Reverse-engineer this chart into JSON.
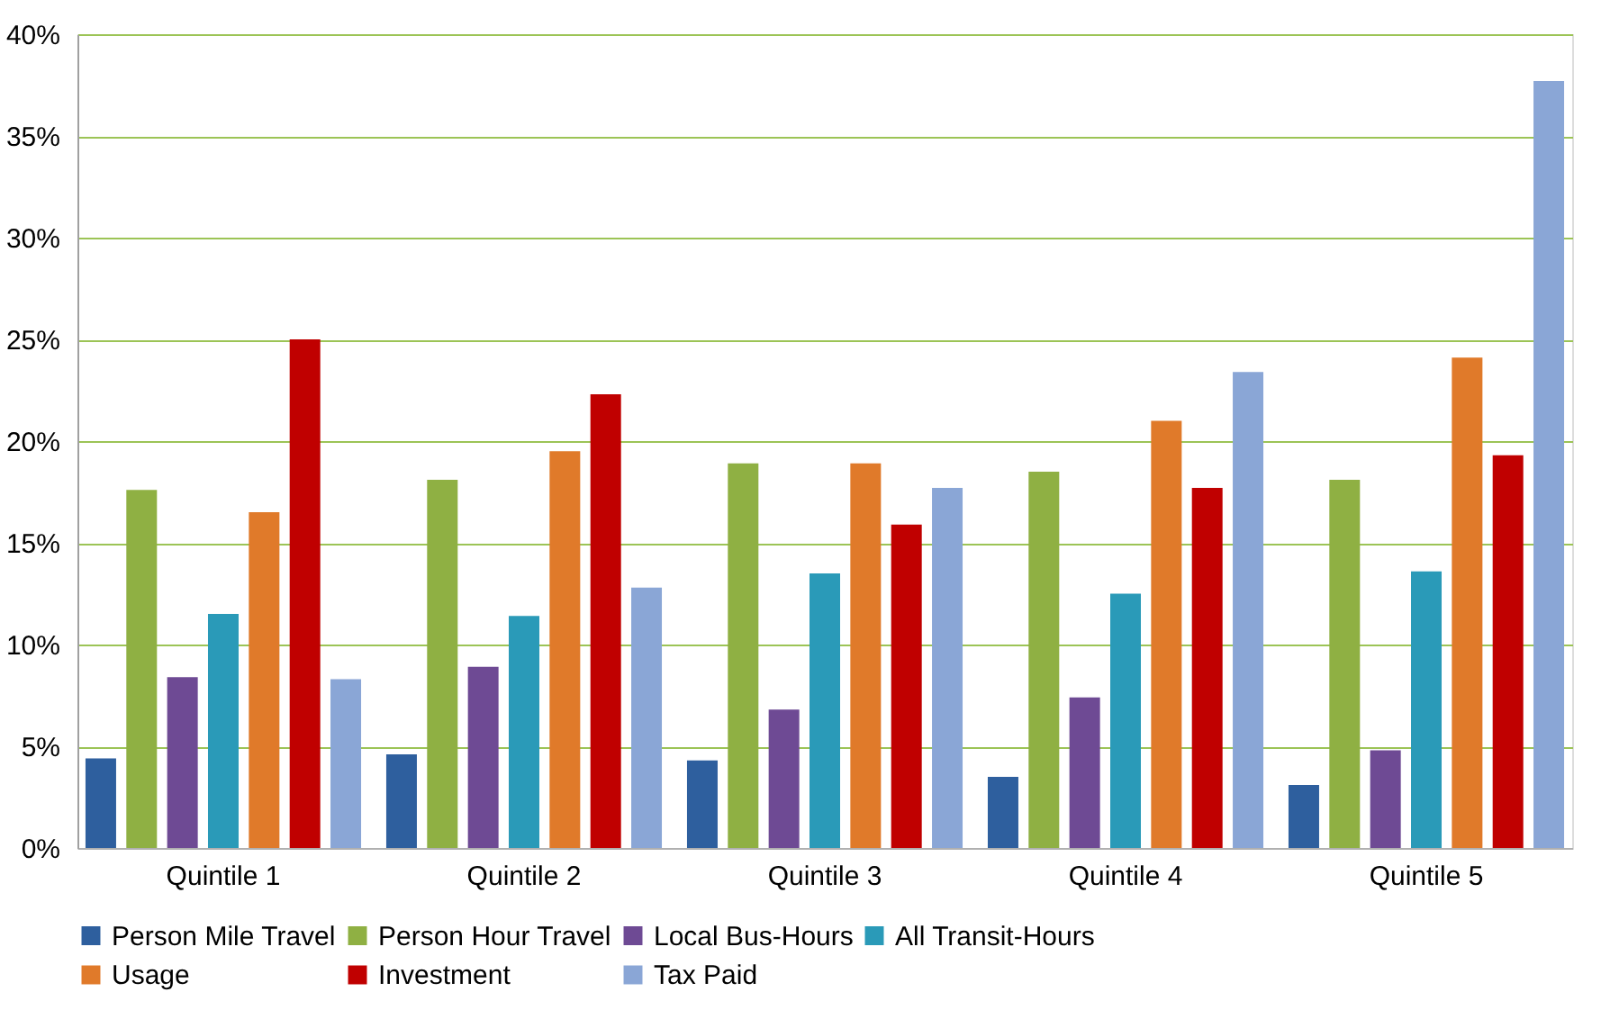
{
  "chart_data": {
    "type": "bar",
    "categories": [
      "Quintile 1",
      "Quintile 2",
      "Quintile 3",
      "Quintile 4",
      "Quintile 5"
    ],
    "series": [
      {
        "name": "Person Mile Travel",
        "color": "#2e5f9e",
        "values": [
          4.4,
          4.6,
          4.3,
          3.5,
          3.1
        ]
      },
      {
        "name": "Person Hour Travel",
        "color": "#8fb043",
        "values": [
          17.6,
          18.1,
          18.9,
          18.5,
          18.1
        ]
      },
      {
        "name": "Local Bus-Hours",
        "color": "#6e4a94",
        "values": [
          8.4,
          8.9,
          6.8,
          7.4,
          4.8
        ]
      },
      {
        "name": "All Transit-Hours",
        "color": "#2a9ab8",
        "values": [
          11.5,
          11.4,
          13.5,
          12.5,
          13.6
        ]
      },
      {
        "name": "Usage",
        "color": "#e07a2a",
        "values": [
          16.5,
          19.5,
          18.9,
          21.0,
          24.1
        ]
      },
      {
        "name": "Investment",
        "color": "#c00000",
        "values": [
          25.0,
          22.3,
          15.9,
          17.7,
          19.3
        ]
      },
      {
        "name": "Tax Paid",
        "color": "#8aa6d6",
        "values": [
          8.3,
          12.8,
          17.7,
          23.4,
          37.7
        ]
      }
    ],
    "ylim": [
      0,
      40
    ],
    "yticks": [
      {
        "value": 0,
        "label": "0%"
      },
      {
        "value": 5,
        "label": "5%"
      },
      {
        "value": 10,
        "label": "10%"
      },
      {
        "value": 15,
        "label": "15%"
      },
      {
        "value": 20,
        "label": "20%"
      },
      {
        "value": 25,
        "label": "25%"
      },
      {
        "value": 30,
        "label": "30%"
      },
      {
        "value": 35,
        "label": "35%"
      },
      {
        "value": 40,
        "label": "40%"
      }
    ],
    "grid": "y",
    "legend": "bottom"
  }
}
